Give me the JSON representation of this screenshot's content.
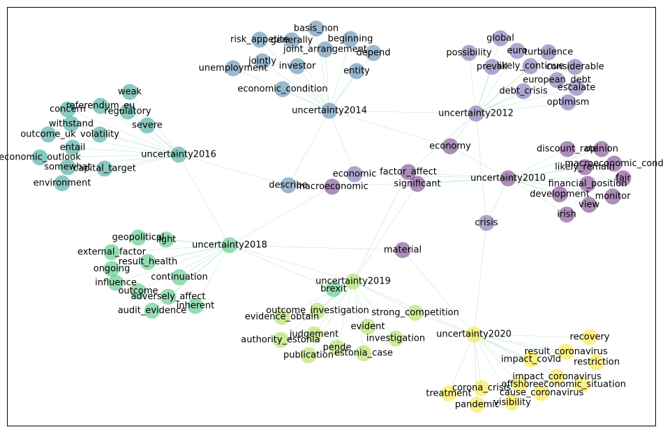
{
  "nodes": [
    {
      "id": "uncertainty2016",
      "label": "uncertainty2016",
      "color": "#2a9d8f"
    },
    {
      "id": "weak",
      "label": "weak",
      "color": "#2a9d8f"
    },
    {
      "id": "referendum_eu",
      "label": "referendum_eu",
      "color": "#2a9d8f"
    },
    {
      "id": "concern",
      "label": "concern",
      "color": "#2a9d8f"
    },
    {
      "id": "regulatory",
      "label": "regulatory",
      "color": "#2a9d8f"
    },
    {
      "id": "withstand",
      "label": "withstand",
      "color": "#2a9d8f"
    },
    {
      "id": "severe",
      "label": "severe",
      "color": "#2a9d8f"
    },
    {
      "id": "outcome_uk",
      "label": "outcome_uk",
      "color": "#2a9d8f"
    },
    {
      "id": "volatility",
      "label": "volatility",
      "color": "#2a9d8f"
    },
    {
      "id": "entail",
      "label": "entail",
      "color": "#2a9d8f"
    },
    {
      "id": "economic_outlook",
      "label": "economic_outlook",
      "color": "#2a9d8f"
    },
    {
      "id": "somewhat",
      "label": "somewhat",
      "color": "#2a9d8f"
    },
    {
      "id": "capital_target",
      "label": "capital_target",
      "color": "#2a9d8f"
    },
    {
      "id": "environment",
      "label": "environment",
      "color": "#2a9d8f"
    },
    {
      "id": "uncertainty2014",
      "label": "uncertainty2014",
      "color": "#4a7ea6"
    },
    {
      "id": "basis_non",
      "label": "basis_non",
      "color": "#4a7ea6"
    },
    {
      "id": "risk_appetite",
      "label": "risk_appetite",
      "color": "#4a7ea6"
    },
    {
      "id": "generally",
      "label": "generally",
      "color": "#4a7ea6"
    },
    {
      "id": "beginning",
      "label": "beginning",
      "color": "#4a7ea6"
    },
    {
      "id": "joint_arrangement",
      "label": "joint_arrangement",
      "color": "#4a7ea6"
    },
    {
      "id": "depend",
      "label": "depend",
      "color": "#4a7ea6"
    },
    {
      "id": "jointly",
      "label": "jointly",
      "color": "#4a7ea6"
    },
    {
      "id": "investor",
      "label": "investor",
      "color": "#4a7ea6"
    },
    {
      "id": "unemployment",
      "label": "unemployment",
      "color": "#4a7ea6"
    },
    {
      "id": "entity",
      "label": "entity",
      "color": "#4a7ea6"
    },
    {
      "id": "economic_condition",
      "label": "economic_condition",
      "color": "#4a7ea6"
    },
    {
      "id": "describe",
      "label": "describe",
      "color": "#4a7ea6"
    },
    {
      "id": "uncertainty2012",
      "label": "uncertainty2012",
      "color": "#6a5fa8"
    },
    {
      "id": "global",
      "label": "global",
      "color": "#6a5fa8"
    },
    {
      "id": "possibility",
      "label": "possibility",
      "color": "#6a5fa8"
    },
    {
      "id": "euro",
      "label": "euro",
      "color": "#6a5fa8"
    },
    {
      "id": "turbulence",
      "label": "turbulence",
      "color": "#6a5fa8"
    },
    {
      "id": "prevail",
      "label": "prevail",
      "color": "#6a5fa8"
    },
    {
      "id": "likely_continue",
      "label": "likely_continue",
      "color": "#6a5fa8"
    },
    {
      "id": "considerable",
      "label": "considerable",
      "color": "#6a5fa8"
    },
    {
      "id": "european_debt",
      "label": "european_debt",
      "color": "#6a5fa8"
    },
    {
      "id": "escalate",
      "label": "escalate",
      "color": "#6a5fa8"
    },
    {
      "id": "debt_crisis",
      "label": "debt_crisis",
      "color": "#6a5fa8"
    },
    {
      "id": "optimism",
      "label": "optimism",
      "color": "#6a5fa8"
    },
    {
      "id": "economic",
      "label": "economic",
      "color": "#6a5fa8"
    },
    {
      "id": "crisis",
      "label": "crisis",
      "color": "#6a5fa8"
    },
    {
      "id": "uncertainty2010",
      "label": "uncertainty2010",
      "color": "#6b2f7f"
    },
    {
      "id": "economy",
      "label": "economy",
      "color": "#6b2f7f"
    },
    {
      "id": "discount_rate",
      "label": "discount_rate",
      "color": "#6b2f7f"
    },
    {
      "id": "opinion",
      "label": "opinion",
      "color": "#6b2f7f"
    },
    {
      "id": "macroeconomic_cond",
      "label": "macroeconomic_cond",
      "color": "#6b2f7f"
    },
    {
      "id": "likely_remain",
      "label": "likely_remain",
      "color": "#6b2f7f"
    },
    {
      "id": "fair",
      "label": "fair",
      "color": "#6b2f7f"
    },
    {
      "id": "financial_position",
      "label": "financial_position",
      "color": "#6b2f7f"
    },
    {
      "id": "development",
      "label": "development",
      "color": "#6b2f7f"
    },
    {
      "id": "monitor",
      "label": "monitor",
      "color": "#6b2f7f"
    },
    {
      "id": "view",
      "label": "view",
      "color": "#6b2f7f"
    },
    {
      "id": "irish",
      "label": "irish",
      "color": "#6b2f7f"
    },
    {
      "id": "factor_affect",
      "label": "factor_affect",
      "color": "#6b2f7f"
    },
    {
      "id": "significant",
      "label": "significant",
      "color": "#6b2f7f"
    },
    {
      "id": "macroeconomic",
      "label": "macroeconomic",
      "color": "#6b2f7f"
    },
    {
      "id": "material",
      "label": "material",
      "color": "#6b2f7f"
    },
    {
      "id": "uncertainty2018",
      "label": "uncertainty2018",
      "color": "#3fbf75"
    },
    {
      "id": "geopolitical",
      "label": "geopolitical",
      "color": "#3fbf75"
    },
    {
      "id": "light",
      "label": "light",
      "color": "#3fbf75"
    },
    {
      "id": "external_factor",
      "label": "external_factor",
      "color": "#3fbf75"
    },
    {
      "id": "result_health",
      "label": "result_health",
      "color": "#3fbf75"
    },
    {
      "id": "ongoing",
      "label": "ongoing",
      "color": "#3fbf75"
    },
    {
      "id": "continuation",
      "label": "continuation",
      "color": "#3fbf75"
    },
    {
      "id": "influence",
      "label": "influence",
      "color": "#3fbf75"
    },
    {
      "id": "outcome",
      "label": "outcome",
      "color": "#3fbf75"
    },
    {
      "id": "adversely_affect",
      "label": "adversely_affect",
      "color": "#3fbf75"
    },
    {
      "id": "inherent",
      "label": "inherent",
      "color": "#3fbf75"
    },
    {
      "id": "audit_evidence",
      "label": "audit_evidence",
      "color": "#3fbf75"
    },
    {
      "id": "brexit",
      "label": "brexit",
      "color": "#3fbf75"
    },
    {
      "id": "uncertainty2019",
      "label": "uncertainty2019",
      "color": "#a6d94a"
    },
    {
      "id": "outcome_investigation",
      "label": "outcome_investigation",
      "color": "#a6d94a"
    },
    {
      "id": "strong_competition",
      "label": "strong_competition",
      "color": "#a6d94a"
    },
    {
      "id": "evidence_obtain",
      "label": "evidence_obtain",
      "color": "#a6d94a"
    },
    {
      "id": "evident",
      "label": "evident",
      "color": "#a6d94a"
    },
    {
      "id": "judgement",
      "label": "judgement",
      "color": "#a6d94a"
    },
    {
      "id": "authority_estonia",
      "label": "authority_estonia",
      "color": "#a6d94a"
    },
    {
      "id": "investigation",
      "label": "investigation",
      "color": "#a6d94a"
    },
    {
      "id": "pende",
      "label": "pende",
      "color": "#a6d94a"
    },
    {
      "id": "estonia_case",
      "label": "estonia_case",
      "color": "#a6d94a"
    },
    {
      "id": "publication",
      "label": "publication",
      "color": "#a6d94a"
    },
    {
      "id": "uncertainty2020",
      "label": "uncertainty2020",
      "color": "#fbe424"
    },
    {
      "id": "recovery",
      "label": "recovery",
      "color": "#fbe424"
    },
    {
      "id": "result_coronavirus",
      "label": "result_coronavirus",
      "color": "#fbe424"
    },
    {
      "id": "impact_covid",
      "label": "impact_covid",
      "color": "#fbe424"
    },
    {
      "id": "restriction",
      "label": "restriction",
      "color": "#fbe424"
    },
    {
      "id": "impact_coronavirus",
      "label": "impact_coronavirus",
      "color": "#fbe424"
    },
    {
      "id": "corona_crisis",
      "label": "corona_crisis",
      "color": "#fbe424"
    },
    {
      "id": "offshore",
      "label": "offshore",
      "color": "#fbe424"
    },
    {
      "id": "economic_situation",
      "label": "economic_situation",
      "color": "#fbe424"
    },
    {
      "id": "treatment",
      "label": "treatment",
      "color": "#fbe424"
    },
    {
      "id": "cause_coronavirus",
      "label": "cause_coronavirus",
      "color": "#fbe424"
    },
    {
      "id": "pandemic",
      "label": "pandemic",
      "color": "#fbe424"
    },
    {
      "id": "visibility",
      "label": "visibility",
      "color": "#fbe424"
    }
  ],
  "edges": [
    [
      "uncertainty2016",
      "weak"
    ],
    [
      "uncertainty2016",
      "referendum_eu"
    ],
    [
      "uncertainty2016",
      "concern"
    ],
    [
      "uncertainty2016",
      "regulatory"
    ],
    [
      "uncertainty2016",
      "withstand"
    ],
    [
      "uncertainty2016",
      "severe"
    ],
    [
      "uncertainty2016",
      "outcome_uk"
    ],
    [
      "uncertainty2016",
      "volatility"
    ],
    [
      "uncertainty2016",
      "entail"
    ],
    [
      "uncertainty2016",
      "economic_outlook"
    ],
    [
      "uncertainty2016",
      "somewhat"
    ],
    [
      "uncertainty2016",
      "capital_target"
    ],
    [
      "uncertainty2016",
      "environment"
    ],
    [
      "uncertainty2016",
      "describe"
    ],
    [
      "uncertainty2016",
      "uncertainty2018"
    ],
    [
      "uncertainty2014",
      "basis_non"
    ],
    [
      "uncertainty2014",
      "risk_appetite"
    ],
    [
      "uncertainty2014",
      "generally"
    ],
    [
      "uncertainty2014",
      "beginning"
    ],
    [
      "uncertainty2014",
      "joint_arrangement"
    ],
    [
      "uncertainty2014",
      "depend"
    ],
    [
      "uncertainty2014",
      "jointly"
    ],
    [
      "uncertainty2014",
      "investor"
    ],
    [
      "uncertainty2014",
      "unemployment"
    ],
    [
      "uncertainty2014",
      "entity"
    ],
    [
      "uncertainty2014",
      "economic_condition"
    ],
    [
      "uncertainty2014",
      "describe"
    ],
    [
      "uncertainty2014",
      "uncertainty2012"
    ],
    [
      "uncertainty2014",
      "economy"
    ],
    [
      "uncertainty2014",
      "economic"
    ],
    [
      "uncertainty2012",
      "global"
    ],
    [
      "uncertainty2012",
      "possibility"
    ],
    [
      "uncertainty2012",
      "euro"
    ],
    [
      "uncertainty2012",
      "turbulence"
    ],
    [
      "uncertainty2012",
      "prevail"
    ],
    [
      "uncertainty2012",
      "likely_continue"
    ],
    [
      "uncertainty2012",
      "considerable"
    ],
    [
      "uncertainty2012",
      "european_debt"
    ],
    [
      "uncertainty2012",
      "escalate"
    ],
    [
      "uncertainty2012",
      "debt_crisis"
    ],
    [
      "uncertainty2012",
      "optimism"
    ],
    [
      "uncertainty2012",
      "economy"
    ],
    [
      "uncertainty2012",
      "crisis"
    ],
    [
      "uncertainty2012",
      "factor_affect"
    ],
    [
      "uncertainty2010",
      "economy"
    ],
    [
      "uncertainty2010",
      "discount_rate"
    ],
    [
      "uncertainty2010",
      "opinion"
    ],
    [
      "uncertainty2010",
      "macroeconomic_cond"
    ],
    [
      "uncertainty2010",
      "likely_remain"
    ],
    [
      "uncertainty2010",
      "fair"
    ],
    [
      "uncertainty2010",
      "financial_position"
    ],
    [
      "uncertainty2010",
      "development"
    ],
    [
      "uncertainty2010",
      "monitor"
    ],
    [
      "uncertainty2010",
      "view"
    ],
    [
      "uncertainty2010",
      "irish"
    ],
    [
      "uncertainty2010",
      "factor_affect"
    ],
    [
      "uncertainty2010",
      "significant"
    ],
    [
      "uncertainty2010",
      "macroeconomic"
    ],
    [
      "uncertainty2010",
      "economic"
    ],
    [
      "uncertainty2010",
      "crisis"
    ],
    [
      "uncertainty2018",
      "geopolitical"
    ],
    [
      "uncertainty2018",
      "light"
    ],
    [
      "uncertainty2018",
      "external_factor"
    ],
    [
      "uncertainty2018",
      "result_health"
    ],
    [
      "uncertainty2018",
      "ongoing"
    ],
    [
      "uncertainty2018",
      "continuation"
    ],
    [
      "uncertainty2018",
      "influence"
    ],
    [
      "uncertainty2018",
      "outcome"
    ],
    [
      "uncertainty2018",
      "adversely_affect"
    ],
    [
      "uncertainty2018",
      "inherent"
    ],
    [
      "uncertainty2018",
      "audit_evidence"
    ],
    [
      "uncertainty2018",
      "brexit"
    ],
    [
      "uncertainty2018",
      "macroeconomic"
    ],
    [
      "uncertainty2018",
      "material"
    ],
    [
      "uncertainty2018",
      "uncertainty2019"
    ],
    [
      "uncertainty2019",
      "outcome_investigation"
    ],
    [
      "uncertainty2019",
      "strong_competition"
    ],
    [
      "uncertainty2019",
      "evidence_obtain"
    ],
    [
      "uncertainty2019",
      "evident"
    ],
    [
      "uncertainty2019",
      "judgement"
    ],
    [
      "uncertainty2019",
      "authority_estonia"
    ],
    [
      "uncertainty2019",
      "investigation"
    ],
    [
      "uncertainty2019",
      "pende"
    ],
    [
      "uncertainty2019",
      "estonia_case"
    ],
    [
      "uncertainty2019",
      "publication"
    ],
    [
      "uncertainty2019",
      "brexit"
    ],
    [
      "uncertainty2019",
      "significant"
    ],
    [
      "uncertainty2019",
      "factor_affect"
    ],
    [
      "uncertainty2019",
      "uncertainty2020"
    ],
    [
      "uncertainty2020",
      "recovery"
    ],
    [
      "uncertainty2020",
      "result_coronavirus"
    ],
    [
      "uncertainty2020",
      "impact_covid"
    ],
    [
      "uncertainty2020",
      "restriction"
    ],
    [
      "uncertainty2020",
      "impact_coronavirus"
    ],
    [
      "uncertainty2020",
      "corona_crisis"
    ],
    [
      "uncertainty2020",
      "offshore"
    ],
    [
      "uncertainty2020",
      "economic_situation"
    ],
    [
      "uncertainty2020",
      "treatment"
    ],
    [
      "uncertainty2020",
      "cause_coronavirus"
    ],
    [
      "uncertainty2020",
      "pandemic"
    ],
    [
      "uncertainty2020",
      "visibility"
    ],
    [
      "uncertainty2020",
      "material"
    ],
    [
      "uncertainty2020",
      "crisis"
    ],
    [
      "uncertainty2020",
      "strong_competition"
    ]
  ]
}
